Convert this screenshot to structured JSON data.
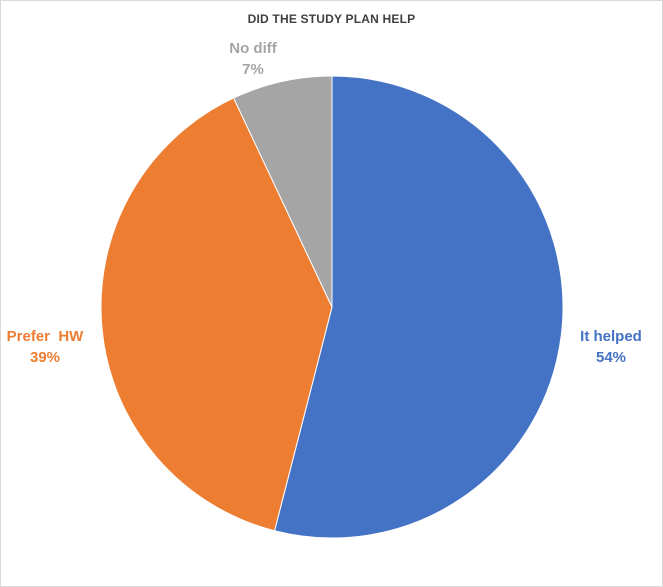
{
  "chart_data": {
    "type": "pie",
    "title": "DID THE STUDY PLAN HELP",
    "categories": [
      "It helped",
      "Prefer  HW",
      "No diff"
    ],
    "values": [
      54,
      39,
      7
    ],
    "value_labels": [
      "54%",
      "39%",
      "7%"
    ],
    "colors": [
      "#4472C4",
      "#ED7D31",
      "#A5A5A5"
    ],
    "start_angle": "12 o'clock",
    "direction": "clockwise",
    "legend": "none",
    "label_position": "outside"
  }
}
